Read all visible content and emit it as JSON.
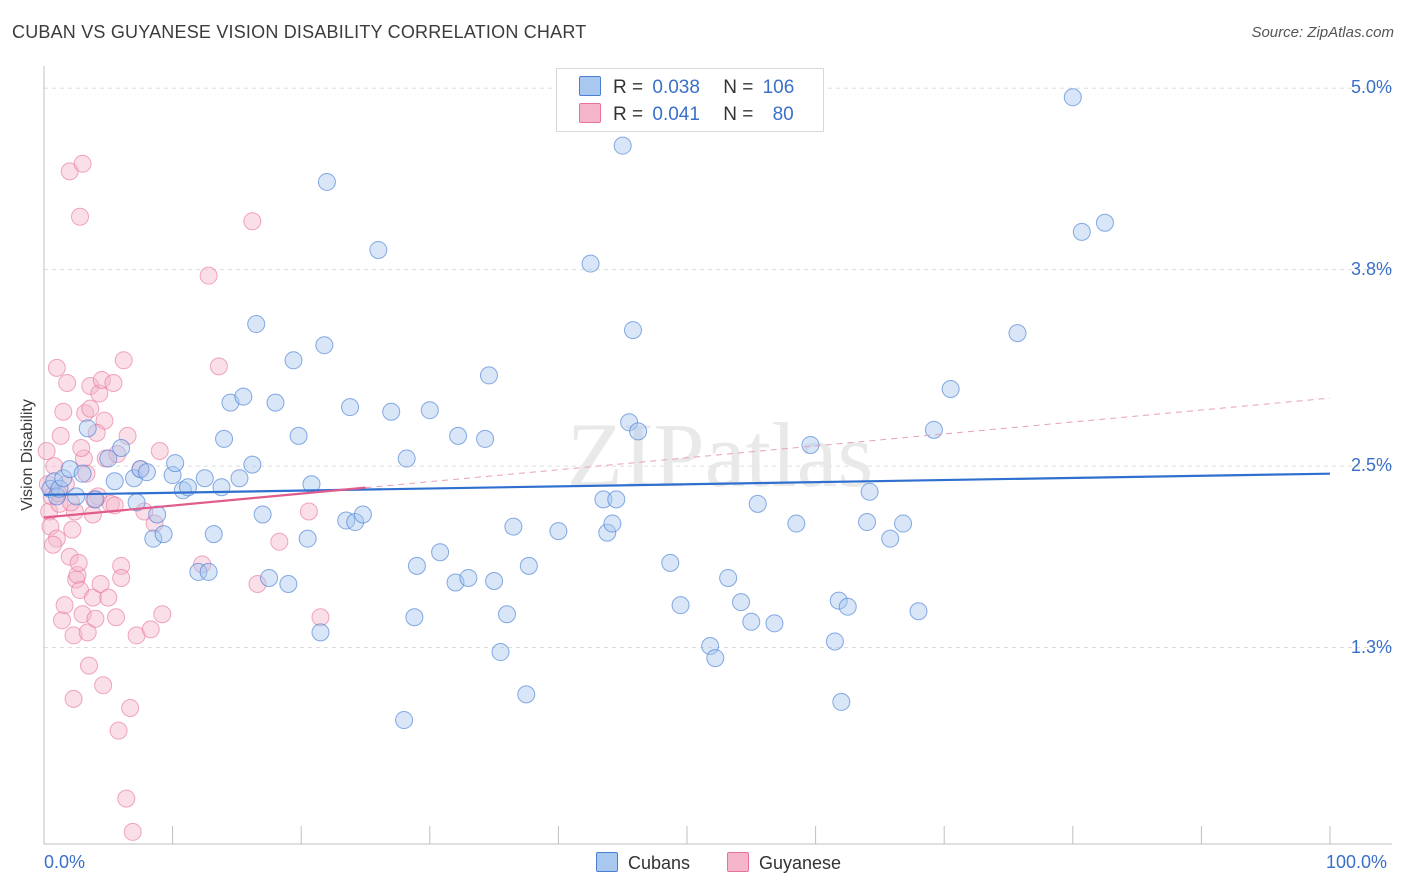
{
  "title": "CUBAN VS GUYANESE VISION DISABILITY CORRELATION CHART",
  "source": "Source: ZipAtlas.com",
  "watermark": "ZIPatlas",
  "legend_top": {
    "rows": [
      {
        "r_label": "R =",
        "r_value": "0.038",
        "n_label": "N =",
        "n_value": "106"
      },
      {
        "r_label": "R =",
        "r_value": "0.041",
        "n_label": "N =",
        "n_value": "80"
      }
    ]
  },
  "colors": {
    "cubans": "#4a7fd4",
    "cubans_fill": "#a9c8f0",
    "guyanese": "#e8719a",
    "guyanese_fill": "#f5b6cb",
    "tick_label": "#3a70c8",
    "grid": "#dddddd"
  },
  "chart_data": {
    "type": "scatter",
    "title": "CUBAN VS GUYANESE VISION DISABILITY CORRELATION CHART",
    "xlabel": "",
    "ylabel": "Vision Disability",
    "xlim": [
      0,
      100
    ],
    "ylim": [
      0,
      5.2
    ],
    "x_tick_labels": [
      "0.0%",
      "100.0%"
    ],
    "y_ticks": [
      1.3,
      2.5,
      3.8,
      5.0
    ],
    "y_tick_labels": [
      "1.3%",
      "2.5%",
      "3.8%",
      "5.0%"
    ],
    "legend_position": "bottom",
    "series": [
      {
        "name": "Cubans",
        "r": 0.038,
        "n": 106,
        "trend": {
          "x": [
            0,
            100
          ],
          "y": [
            2.31,
            2.45
          ],
          "style": "solid"
        },
        "points": [
          [
            0.5,
            2.35
          ],
          [
            0.8,
            2.4
          ],
          [
            1,
            2.3
          ],
          [
            1.2,
            2.35
          ],
          [
            1.5,
            2.42
          ],
          [
            2,
            2.48
          ],
          [
            2.5,
            2.3
          ],
          [
            3,
            2.45
          ],
          [
            3.4,
            2.75
          ],
          [
            4,
            2.28
          ],
          [
            5,
            2.55
          ],
          [
            5.5,
            2.4
          ],
          [
            6,
            2.62
          ],
          [
            7,
            2.42
          ],
          [
            7.2,
            2.26
          ],
          [
            7.5,
            2.48
          ],
          [
            8,
            2.46
          ],
          [
            8.5,
            2.02
          ],
          [
            8.8,
            2.18
          ],
          [
            9.3,
            2.05
          ],
          [
            10,
            2.44
          ],
          [
            10.2,
            2.52
          ],
          [
            10.8,
            2.34
          ],
          [
            11.2,
            2.36
          ],
          [
            12,
            1.8
          ],
          [
            12.5,
            2.42
          ],
          [
            12.8,
            1.8
          ],
          [
            13.2,
            2.05
          ],
          [
            13.8,
            2.36
          ],
          [
            14,
            2.68
          ],
          [
            14.5,
            2.92
          ],
          [
            15.2,
            2.42
          ],
          [
            15.5,
            2.96
          ],
          [
            16.2,
            2.51
          ],
          [
            16.5,
            3.44
          ],
          [
            17,
            2.18
          ],
          [
            17.5,
            1.76
          ],
          [
            18,
            2.92
          ],
          [
            19,
            1.72
          ],
          [
            19.4,
            3.2
          ],
          [
            19.8,
            2.7
          ],
          [
            20.5,
            2.02
          ],
          [
            20.8,
            2.38
          ],
          [
            21.5,
            1.4
          ],
          [
            21.8,
            3.3
          ],
          [
            22,
            4.38
          ],
          [
            23.5,
            2.14
          ],
          [
            23.8,
            2.89
          ],
          [
            24.2,
            2.13
          ],
          [
            24.8,
            2.18
          ],
          [
            26,
            3.93
          ],
          [
            27,
            2.86
          ],
          [
            28,
            0.82
          ],
          [
            28.2,
            2.55
          ],
          [
            28.8,
            1.5
          ],
          [
            29,
            1.84
          ],
          [
            30,
            2.87
          ],
          [
            30.8,
            1.93
          ],
          [
            32,
            1.73
          ],
          [
            32.2,
            2.7
          ],
          [
            33,
            1.76
          ],
          [
            34.3,
            2.68
          ],
          [
            34.6,
            3.1
          ],
          [
            35,
            1.74
          ],
          [
            35.5,
            1.27
          ],
          [
            36,
            1.52
          ],
          [
            36.5,
            2.1
          ],
          [
            37.5,
            0.99
          ],
          [
            37.7,
            1.84
          ],
          [
            40,
            2.07
          ],
          [
            42.5,
            3.84
          ],
          [
            43.5,
            2.28
          ],
          [
            43.8,
            2.06
          ],
          [
            44.2,
            2.12
          ],
          [
            44.5,
            2.28
          ],
          [
            45,
            4.62
          ],
          [
            45.5,
            2.79
          ],
          [
            45.8,
            3.4
          ],
          [
            46.2,
            2.73
          ],
          [
            48.7,
            1.86
          ],
          [
            49.5,
            1.58
          ],
          [
            51.8,
            1.31
          ],
          [
            52.2,
            1.23
          ],
          [
            53.2,
            1.76
          ],
          [
            54.2,
            1.6
          ],
          [
            55,
            1.47
          ],
          [
            55.5,
            2.25
          ],
          [
            56.8,
            1.46
          ],
          [
            58.5,
            2.12
          ],
          [
            59.6,
            2.64
          ],
          [
            61.5,
            1.34
          ],
          [
            62,
            0.94
          ],
          [
            61.8,
            1.61
          ],
          [
            62.5,
            1.57
          ],
          [
            64,
            2.13
          ],
          [
            64.2,
            2.33
          ],
          [
            65.8,
            2.02
          ],
          [
            66.8,
            2.12
          ],
          [
            68,
            1.54
          ],
          [
            69.2,
            2.74
          ],
          [
            70.5,
            3.01
          ],
          [
            75.7,
            3.38
          ],
          [
            80,
            4.94
          ],
          [
            80.7,
            4.05
          ],
          [
            82.5,
            4.11
          ]
        ]
      },
      {
        "name": "Guyanese",
        "r": 0.041,
        "n": 80,
        "trend": {
          "x": [
            0,
            100
          ],
          "y": [
            2.16,
            2.95
          ],
          "style": "solid-then-dashed",
          "solid_until_x": 25
        },
        "points": [
          [
            0.3,
            2.38
          ],
          [
            0.4,
            2.2
          ],
          [
            0.5,
            2.1
          ],
          [
            0.6,
            2.3
          ],
          [
            0.8,
            2.5
          ],
          [
            1,
            2.02
          ],
          [
            1,
            3.15
          ],
          [
            1.2,
            2.25
          ],
          [
            1.3,
            2.7
          ],
          [
            1.4,
            1.48
          ],
          [
            1.5,
            2.86
          ],
          [
            1.7,
            2.38
          ],
          [
            1.8,
            3.05
          ],
          [
            2,
            4.45
          ],
          [
            2,
            1.9
          ],
          [
            2.2,
            2.08
          ],
          [
            2.3,
            1.38
          ],
          [
            2.3,
            0.96
          ],
          [
            2.4,
            2.2
          ],
          [
            2.5,
            1.75
          ],
          [
            2.6,
            1.78
          ],
          [
            2.8,
            1.68
          ],
          [
            2.8,
            4.15
          ],
          [
            3,
            4.5
          ],
          [
            3,
            1.52
          ],
          [
            3.1,
            2.55
          ],
          [
            3.2,
            2.85
          ],
          [
            3.3,
            2.45
          ],
          [
            3.4,
            1.4
          ],
          [
            3.5,
            1.18
          ],
          [
            3.6,
            3.03
          ],
          [
            3.6,
            2.88
          ],
          [
            3.8,
            1.63
          ],
          [
            3.8,
            2.18
          ],
          [
            4,
            1.49
          ],
          [
            4.2,
            2.3
          ],
          [
            4.3,
            2.98
          ],
          [
            4.4,
            1.72
          ],
          [
            4.5,
            3.07
          ],
          [
            4.6,
            1.05
          ],
          [
            4.7,
            2.8
          ],
          [
            4.8,
            2.55
          ],
          [
            5,
            1.63
          ],
          [
            5.2,
            2.25
          ],
          [
            5.4,
            3.05
          ],
          [
            5.5,
            2.24
          ],
          [
            5.6,
            1.5
          ],
          [
            5.7,
            2.58
          ],
          [
            5.8,
            0.75
          ],
          [
            6,
            1.84
          ],
          [
            6,
            1.76
          ],
          [
            6.2,
            3.2
          ],
          [
            6.4,
            0.3
          ],
          [
            6.5,
            2.7
          ],
          [
            6.7,
            0.9
          ],
          [
            6.9,
            0.08
          ],
          [
            7.2,
            1.38
          ],
          [
            7.5,
            2.48
          ],
          [
            7.8,
            2.2
          ],
          [
            8.3,
            1.42
          ],
          [
            8.6,
            2.12
          ],
          [
            9.0,
            2.6
          ],
          [
            9.2,
            1.52
          ],
          [
            12.3,
            1.85
          ],
          [
            12.8,
            3.76
          ],
          [
            13.6,
            3.16
          ],
          [
            16.2,
            4.12
          ],
          [
            16.6,
            1.72
          ],
          [
            18.3,
            2.0
          ],
          [
            20.6,
            2.2
          ],
          [
            21.5,
            1.5
          ],
          [
            0.2,
            2.6
          ],
          [
            1.1,
            2.32
          ],
          [
            2.1,
            2.26
          ],
          [
            0.7,
            1.98
          ],
          [
            1.6,
            1.58
          ],
          [
            3.9,
            2.28
          ],
          [
            2.9,
            2.62
          ],
          [
            4.1,
            2.72
          ],
          [
            2.7,
            1.86
          ]
        ]
      }
    ]
  },
  "bottom_legend": {
    "items": [
      {
        "label": "Cubans"
      },
      {
        "label": "Guyanese"
      }
    ]
  },
  "x_axis": {
    "left_label": "0.0%",
    "right_label": "100.0%"
  }
}
